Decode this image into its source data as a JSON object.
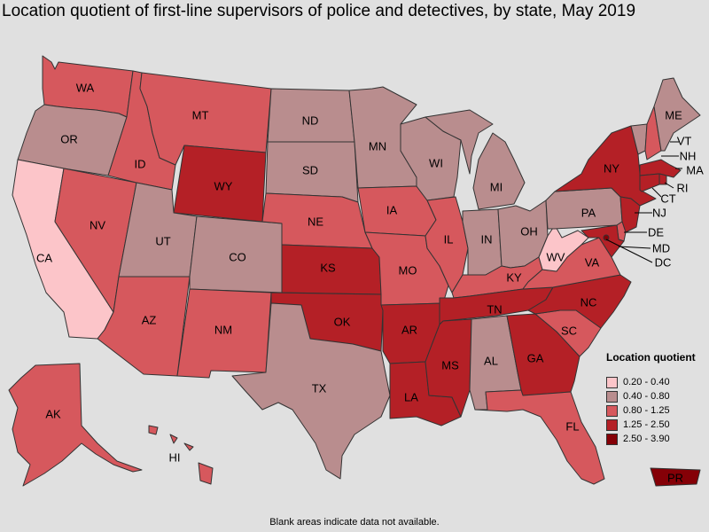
{
  "title": "Location quotient of first-line supervisors of police and detectives, by state, May 2019",
  "footnote": "Blank areas indicate data not available.",
  "legend": {
    "title": "Location quotient",
    "bins": [
      {
        "label": "0.20 - 0.40",
        "color": "#fcc5c9"
      },
      {
        "label": "0.40 - 0.80",
        "color": "#b98d8e"
      },
      {
        "label": "0.80 - 1.25",
        "color": "#d6585d"
      },
      {
        "label": "1.25 - 2.50",
        "color": "#b42026"
      },
      {
        "label": "2.50 - 3.90",
        "color": "#850007"
      }
    ]
  },
  "states": {
    "WA": {
      "label": "WA",
      "bin": 2
    },
    "OR": {
      "label": "OR",
      "bin": 1
    },
    "CA": {
      "label": "CA",
      "bin": 0
    },
    "NV": {
      "label": "NV",
      "bin": 2
    },
    "ID": {
      "label": "ID",
      "bin": 2
    },
    "MT": {
      "label": "MT",
      "bin": 2
    },
    "WY": {
      "label": "WY",
      "bin": 3
    },
    "UT": {
      "label": "UT",
      "bin": 1
    },
    "AZ": {
      "label": "AZ",
      "bin": 2
    },
    "CO": {
      "label": "CO",
      "bin": 1
    },
    "NM": {
      "label": "NM",
      "bin": 2
    },
    "ND": {
      "label": "ND",
      "bin": 1
    },
    "SD": {
      "label": "SD",
      "bin": 1
    },
    "NE": {
      "label": "NE",
      "bin": 2
    },
    "KS": {
      "label": "KS",
      "bin": 3
    },
    "OK": {
      "label": "OK",
      "bin": 3
    },
    "TX": {
      "label": "TX",
      "bin": 1
    },
    "MN": {
      "label": "MN",
      "bin": 1
    },
    "IA": {
      "label": "IA",
      "bin": 2
    },
    "MO": {
      "label": "MO",
      "bin": 2
    },
    "AR": {
      "label": "AR",
      "bin": 3
    },
    "LA": {
      "label": "LA",
      "bin": 3
    },
    "WI": {
      "label": "WI",
      "bin": 1
    },
    "IL": {
      "label": "IL",
      "bin": 2
    },
    "MI": {
      "label": "MI",
      "bin": 1
    },
    "IN": {
      "label": "IN",
      "bin": 1
    },
    "OH": {
      "label": "OH",
      "bin": 1
    },
    "KY": {
      "label": "KY",
      "bin": 2
    },
    "TN": {
      "label": "TN",
      "bin": 3
    },
    "MS": {
      "label": "MS",
      "bin": 3
    },
    "AL": {
      "label": "AL",
      "bin": 1
    },
    "GA": {
      "label": "GA",
      "bin": 3
    },
    "FL": {
      "label": "FL",
      "bin": 2
    },
    "SC": {
      "label": "SC",
      "bin": 2
    },
    "NC": {
      "label": "NC",
      "bin": 3
    },
    "VA": {
      "label": "VA",
      "bin": 2
    },
    "WV": {
      "label": "WV",
      "bin": 0
    },
    "PA": {
      "label": "PA",
      "bin": 1
    },
    "NY": {
      "label": "NY",
      "bin": 3
    },
    "VT": {
      "label": "VT",
      "bin": 1
    },
    "NH": {
      "label": "NH",
      "bin": 2
    },
    "ME": {
      "label": "ME",
      "bin": 1
    },
    "MA": {
      "label": "MA",
      "bin": 3
    },
    "RI": {
      "label": "RI",
      "bin": 3
    },
    "CT": {
      "label": "CT",
      "bin": 3
    },
    "NJ": {
      "label": "NJ",
      "bin": 3
    },
    "DE": {
      "label": "DE",
      "bin": 2
    },
    "MD": {
      "label": "MD",
      "bin": 3
    },
    "DC": {
      "label": "DC",
      "bin": 4
    },
    "AK": {
      "label": "AK",
      "bin": 2
    },
    "HI": {
      "label": "HI",
      "bin": 2
    },
    "PR": {
      "label": "PR",
      "bin": 4
    }
  }
}
